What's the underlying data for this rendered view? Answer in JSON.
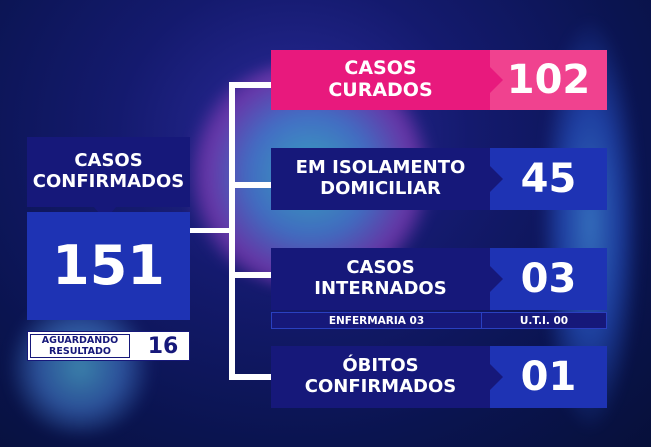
{
  "confirmed": {
    "label": "CASOS CONFIRMADOS",
    "value": "151"
  },
  "awaiting": {
    "label": "AGUARDANDO RESULTADO",
    "value": "16"
  },
  "rows": [
    {
      "label": "CASOS CURADOS",
      "value": "102",
      "color": "#e8197d",
      "value_color": "#f0428f"
    },
    {
      "label": "EM ISOLAMENTO DOMICILIAR",
      "value": "45"
    },
    {
      "label": "CASOS INTERNADOS",
      "value": "03"
    },
    {
      "label": "ÓBITOS CONFIRMADOS",
      "value": "01"
    }
  ],
  "hospital": {
    "ward": "ENFERMARIA 03",
    "icu": "U.T.I. 00"
  }
}
